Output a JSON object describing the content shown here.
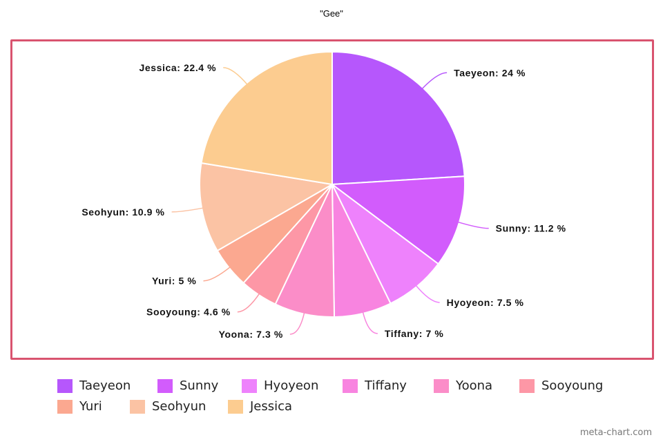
{
  "chart_data": {
    "type": "pie",
    "title": "\"Gee\"",
    "label_suffix": " %",
    "slices": [
      {
        "name": "Taeyeon",
        "value": 24,
        "color": "#b657fc"
      },
      {
        "name": "Sunny",
        "value": 11.2,
        "color": "#d25cfc"
      },
      {
        "name": "Hyoyeon",
        "value": 7.5,
        "color": "#ee82fc"
      },
      {
        "name": "Tiffany",
        "value": 7,
        "color": "#f884e0"
      },
      {
        "name": "Yoona",
        "value": 7.3,
        "color": "#fb8dc8"
      },
      {
        "name": "Sooyoung",
        "value": 4.6,
        "color": "#fd97a6"
      },
      {
        "name": "Yuri",
        "value": 5,
        "color": "#fba890"
      },
      {
        "name": "Seohyun",
        "value": 10.9,
        "color": "#fbc3a4"
      },
      {
        "name": "Jessica",
        "value": 22.4,
        "color": "#fccc90"
      }
    ],
    "legend_position": "bottom",
    "frame_color": "#d9536f"
  },
  "watermark": "meta-chart.com"
}
